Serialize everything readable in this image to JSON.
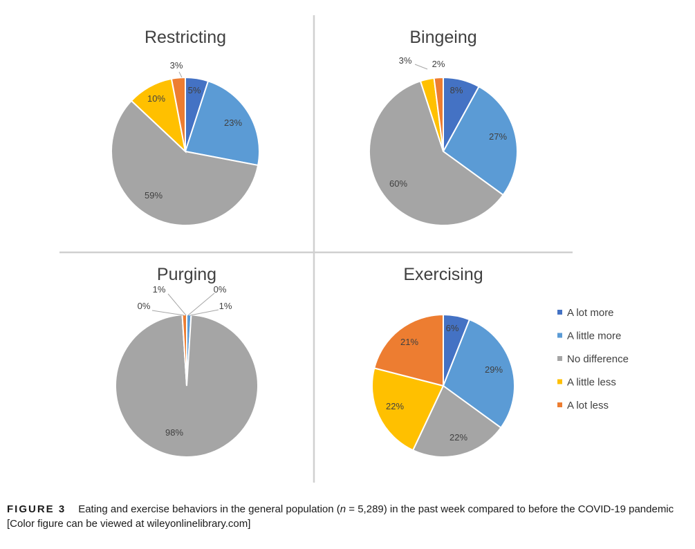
{
  "chart_data": [
    {
      "type": "pie",
      "title": "Restricting",
      "categories": [
        "A lot more",
        "A little more",
        "No difference",
        "A little less",
        "A lot less"
      ],
      "values": [
        5,
        23,
        59,
        10,
        3
      ],
      "labels": [
        "5%",
        "23%",
        "59%",
        "10%",
        "3%"
      ]
    },
    {
      "type": "pie",
      "title": "Bingeing",
      "categories": [
        "A lot more",
        "A little more",
        "No difference",
        "A little less",
        "A lot less"
      ],
      "values": [
        8,
        27,
        60,
        3,
        2
      ],
      "labels": [
        "8%",
        "27%",
        "60%",
        "3%",
        "2%"
      ]
    },
    {
      "type": "pie",
      "title": "Purging",
      "categories": [
        "A lot more",
        "A little more",
        "No difference",
        "A little less",
        "A lot less"
      ],
      "values": [
        0,
        1,
        98,
        0,
        1
      ],
      "labels": [
        "0%",
        "1%",
        "98%",
        "0%",
        "1%"
      ]
    },
    {
      "type": "pie",
      "title": "Exercising",
      "categories": [
        "A lot more",
        "A little more",
        "No difference",
        "A little less",
        "A lot less"
      ],
      "values": [
        6,
        29,
        22,
        22,
        21
      ],
      "labels": [
        "6%",
        "29%",
        "22%",
        "22%",
        "21%"
      ]
    }
  ],
  "legend": {
    "placement": "right of Exercising chart",
    "items": [
      "A lot more",
      "A little more",
      "No difference",
      "A little less",
      "A lot less"
    ]
  },
  "colors": {
    "A lot more": "#4472c4",
    "A little more": "#5b9bd5",
    "No difference": "#a5a5a5",
    "A little less": "#ffc000",
    "A lot less": "#ed7d31",
    "divider": "#d0d0d0"
  },
  "caption": {
    "figure_label": "FIGURE 3",
    "text_before_n": "Eating and exercise behaviors in the general population (",
    "n_symbol": "n",
    "text_after_n": " = 5,289) in the past week compared to before the COVID-19 pandemic",
    "line2": "[Color figure can be viewed at wileyonlinelibrary.com]"
  }
}
